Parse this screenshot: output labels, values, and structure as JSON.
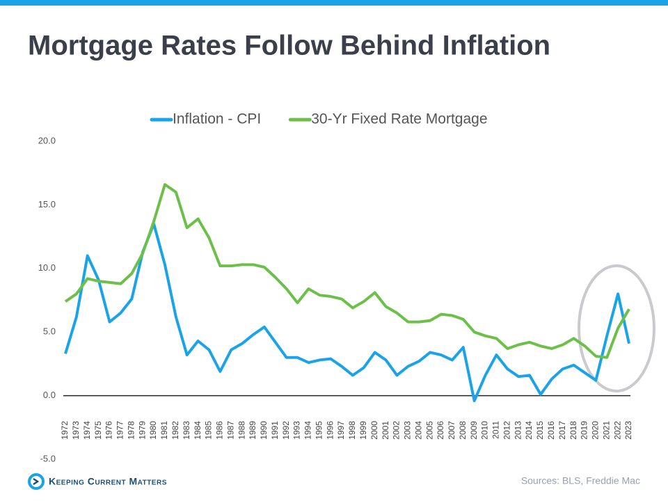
{
  "chart_data": {
    "type": "line",
    "title": "Mortgage Rates Follow Behind Inflation",
    "source": "Sources: BLS, Freddie Mac",
    "categories": [
      "1972",
      "1973",
      "1974",
      "1975",
      "1976",
      "1977",
      "1978",
      "1979",
      "1980",
      "1981",
      "1982",
      "1983",
      "1984",
      "1985",
      "1986",
      "1987",
      "1988",
      "1989",
      "1990",
      "1991",
      "1992",
      "1993",
      "1994",
      "1995",
      "1996",
      "1997",
      "1998",
      "1999",
      "2000",
      "2001",
      "2002",
      "2003",
      "2004",
      "2005",
      "2006",
      "2007",
      "2008",
      "2009",
      "2010",
      "2011",
      "2012",
      "2013",
      "2014",
      "2015",
      "2016",
      "2017",
      "2018",
      "2019",
      "2020",
      "2021",
      "2022",
      "2023"
    ],
    "series": [
      {
        "name": "Inflation - CPI",
        "color": "#1ba3e8",
        "values": [
          3.3,
          6.2,
          11.0,
          9.1,
          5.8,
          6.5,
          7.6,
          11.3,
          13.5,
          10.3,
          6.2,
          3.2,
          4.3,
          3.6,
          1.9,
          3.6,
          4.1,
          4.8,
          5.4,
          4.2,
          3.0,
          3.0,
          2.6,
          2.8,
          2.9,
          2.3,
          1.6,
          2.2,
          3.4,
          2.8,
          1.6,
          2.3,
          2.7,
          3.4,
          3.2,
          2.8,
          3.8,
          -0.4,
          1.6,
          3.2,
          2.1,
          1.5,
          1.6,
          0.1,
          1.3,
          2.1,
          2.4,
          1.8,
          1.2,
          4.7,
          8.0,
          4.1
        ]
      },
      {
        "name": "30-Yr Fixed Rate Mortgage",
        "color": "#6cc04a",
        "values": [
          7.4,
          8.0,
          9.2,
          9.0,
          8.9,
          8.8,
          9.6,
          11.2,
          13.7,
          16.6,
          16.0,
          13.2,
          13.9,
          12.4,
          10.2,
          10.2,
          10.3,
          10.3,
          10.1,
          9.3,
          8.4,
          7.3,
          8.4,
          7.9,
          7.8,
          7.6,
          6.9,
          7.4,
          8.1,
          7.0,
          6.5,
          5.8,
          5.8,
          5.9,
          6.4,
          6.3,
          6.0,
          5.0,
          4.7,
          4.5,
          3.7,
          4.0,
          4.2,
          3.9,
          3.7,
          4.0,
          4.5,
          3.9,
          3.1,
          3.0,
          5.3,
          6.8
        ]
      }
    ],
    "ylim": [
      -5,
      20
    ],
    "yticks": [
      {
        "value": -5,
        "label": "-5.0"
      },
      {
        "value": 0,
        "label": "0.0"
      },
      {
        "value": 5,
        "label": "5.0"
      },
      {
        "value": 10,
        "label": "10.0"
      },
      {
        "value": 15,
        "label": "15.0"
      },
      {
        "value": 20,
        "label": "20.0"
      }
    ],
    "legend": "top"
  },
  "brand": "Keeping Current Matters"
}
